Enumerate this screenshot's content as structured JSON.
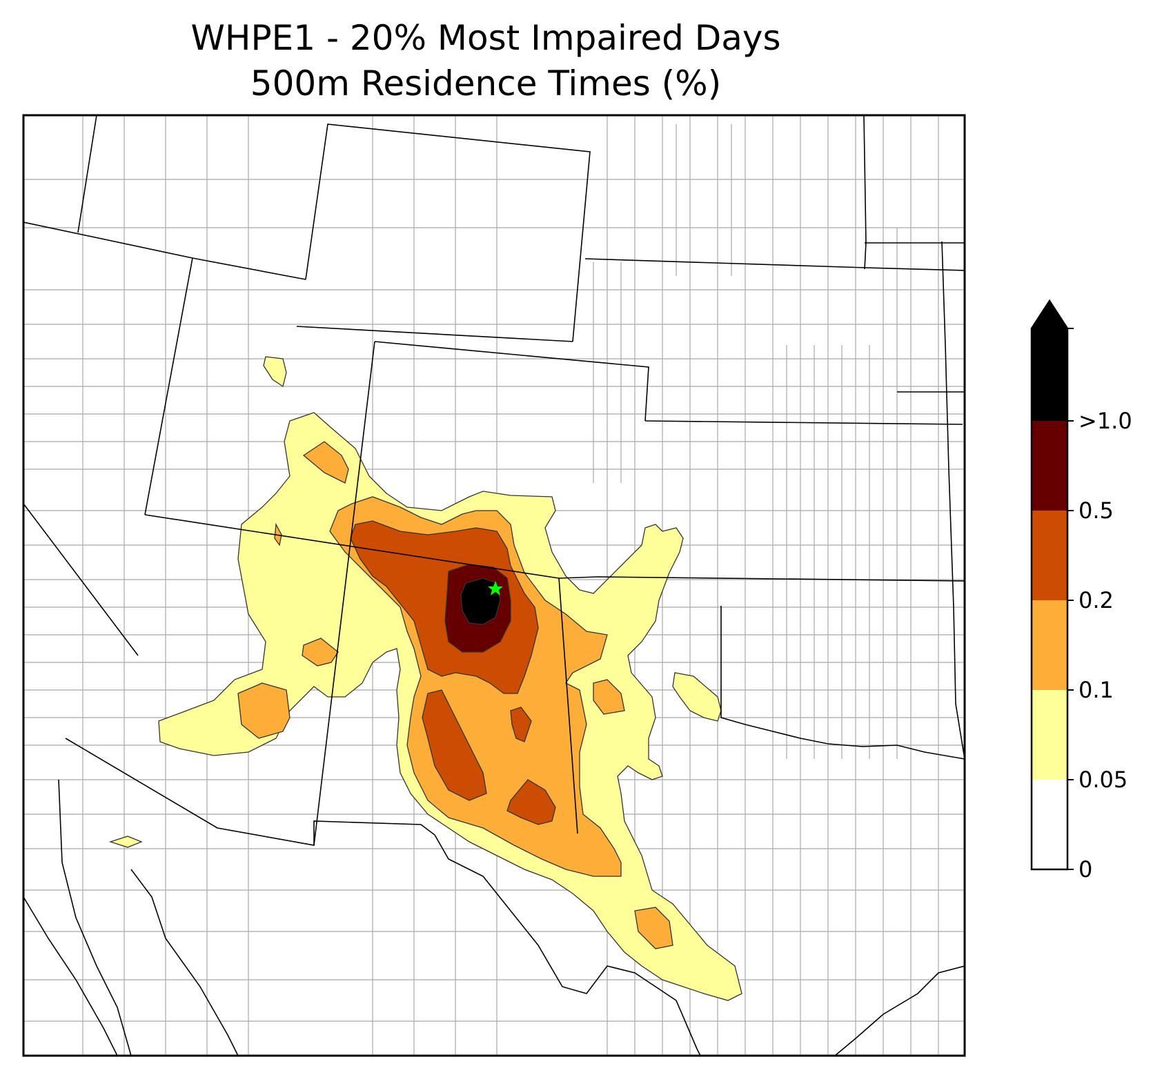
{
  "title": {
    "line1": "WHPE1 - 20% Most Impaired Days",
    "line2": "500m Residence Times (%)"
  },
  "colorbar": {
    "extend": "max",
    "labels": [
      ">1.0",
      "0.5",
      "0.2",
      "0.1",
      "0.05",
      "0"
    ],
    "bands": [
      {
        "range": "0-0.05",
        "color": "#ffffff"
      },
      {
        "range": "0.05-0.1",
        "color": "#ffff99"
      },
      {
        "range": "0.1-0.2",
        "color": "#fdae38"
      },
      {
        "range": "0.2-0.5",
        "color": "#cc4c02"
      },
      {
        "range": "0.5-1.0",
        "color": "#660000"
      },
      {
        "range": ">1.0",
        "color": "#000000"
      }
    ]
  },
  "map": {
    "site_marker": {
      "shape": "star",
      "color": "#00ff00"
    },
    "boundary_colors": {
      "state": "#000000",
      "county": "#a8a8a8"
    }
  }
}
